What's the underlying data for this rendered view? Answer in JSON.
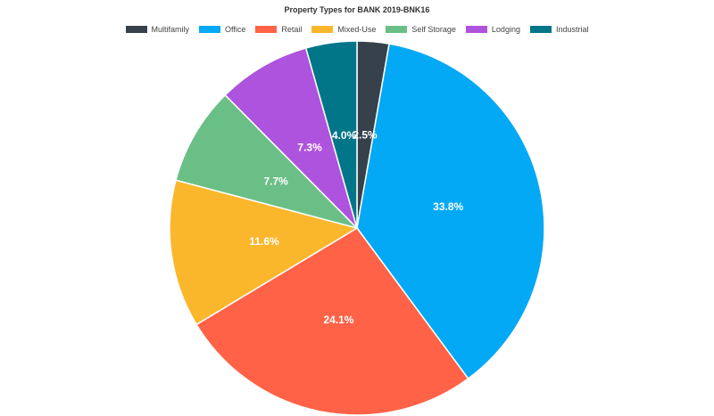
{
  "chart_data": {
    "type": "pie",
    "title": "Property Types for BANK 2019-BNK16",
    "categories": [
      "Multifamily",
      "Office",
      "Retail",
      "Mixed-Use",
      "Self Storage",
      "Lodging",
      "Industrial"
    ],
    "values": [
      2.5,
      33.8,
      24.1,
      11.6,
      7.7,
      7.3,
      4.0
    ],
    "labels": [
      "2.5%",
      "33.8%",
      "24.1%",
      "11.6%",
      "7.7%",
      "7.3%",
      "4.0%"
    ],
    "colors": [
      "#36414c",
      "#03a9f4",
      "#ff6247",
      "#fbb72c",
      "#6abf87",
      "#ae53dd",
      "#007688"
    ],
    "legend_position": "top"
  }
}
